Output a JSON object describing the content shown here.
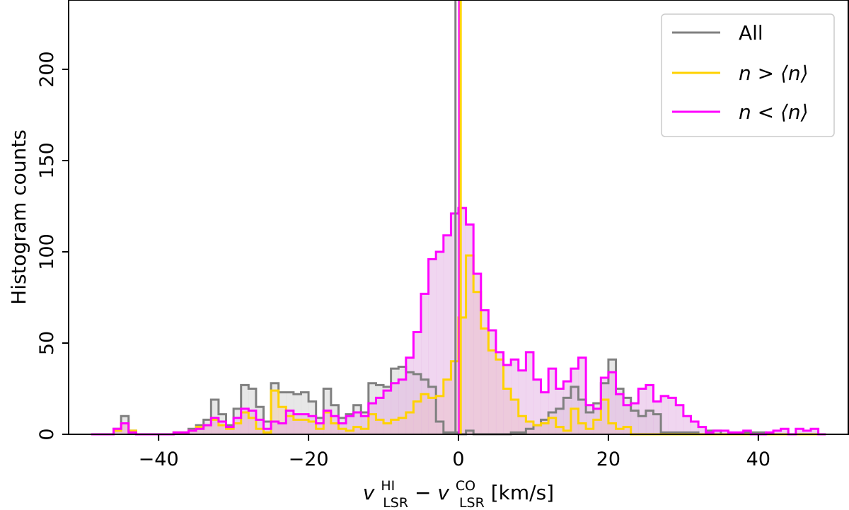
{
  "chart_data": {
    "type": "histogram",
    "bin_width": 1,
    "xlim": [
      -52,
      52
    ],
    "ylim": [
      0,
      238
    ],
    "xticks": [
      -40,
      -20,
      0,
      20,
      40
    ],
    "yticks": [
      0,
      50,
      100,
      150,
      200
    ],
    "ylabel": "Histogram counts",
    "xlabel": {
      "v1": "v",
      "v1_sup": "HI",
      "v1_sub": "LSR",
      "minus": " − ",
      "v2": "v",
      "v2_sup": "CO",
      "v2_sub": "LSR",
      "unit": " [km/s]"
    },
    "legend_position": "top-right",
    "series": [
      {
        "name": "All",
        "color": "#808080",
        "fill": "#d3d3d3",
        "edges": [
          -49,
          -48,
          -47,
          -46,
          -45,
          -44,
          -43,
          -42,
          -41,
          -40,
          -39,
          -38,
          -37,
          -36,
          -35,
          -34,
          -33,
          -32,
          -31,
          -30,
          -29,
          -28,
          -27,
          -26,
          -25,
          -24,
          -23,
          -22,
          -21,
          -20,
          -19,
          -18,
          -17,
          -16,
          -15,
          -14,
          -13,
          -12,
          -11,
          -10,
          -9,
          -8,
          -7,
          -6,
          -5,
          -4,
          -3,
          -2,
          -1,
          0,
          1,
          2,
          3,
          4,
          5,
          6,
          7,
          8,
          9,
          10,
          11,
          12,
          13,
          14,
          15,
          16,
          17,
          18,
          19,
          20,
          21,
          22,
          23,
          24,
          25,
          26,
          27,
          28,
          29,
          30,
          31,
          32,
          33,
          34,
          35,
          36,
          37,
          38,
          39,
          40,
          41,
          42,
          43,
          44,
          45,
          46,
          47,
          48,
          49
        ],
        "counts": [
          0,
          0,
          0,
          3,
          10,
          2,
          0,
          0,
          0,
          0,
          0,
          1,
          1,
          3,
          5,
          8,
          19,
          11,
          5,
          14,
          27,
          25,
          15,
          7,
          28,
          23,
          23,
          22,
          23,
          18,
          9,
          25,
          16,
          9,
          11,
          16,
          12,
          28,
          27,
          26,
          36,
          37,
          34,
          33,
          30,
          26,
          7,
          1,
          1,
          0,
          2,
          0,
          0,
          0,
          0,
          0,
          1,
          1,
          3,
          5,
          8,
          12,
          14,
          20,
          26,
          19,
          12,
          17,
          28,
          41,
          25,
          20,
          13,
          10,
          13,
          11,
          1,
          1,
          1,
          1,
          1,
          0,
          2,
          2,
          0,
          0,
          0,
          1,
          1,
          1,
          0,
          0,
          0,
          0,
          0,
          0,
          0,
          0
        ]
      },
      {
        "name": "n > ⟨n⟩",
        "color": "#ffd200",
        "fill": "#f2cfae",
        "edges": [
          -49,
          -48,
          -47,
          -46,
          -45,
          -44,
          -43,
          -42,
          -41,
          -40,
          -39,
          -38,
          -37,
          -36,
          -35,
          -34,
          -33,
          -32,
          -31,
          -30,
          -29,
          -28,
          -27,
          -26,
          -25,
          -24,
          -23,
          -22,
          -21,
          -20,
          -19,
          -18,
          -17,
          -16,
          -15,
          -14,
          -13,
          -12,
          -11,
          -10,
          -9,
          -8,
          -7,
          -6,
          -5,
          -4,
          -3,
          -2,
          -1,
          0,
          1,
          2,
          3,
          4,
          5,
          6,
          7,
          8,
          9,
          10,
          11,
          12,
          13,
          14,
          15,
          16,
          17,
          18,
          19,
          20,
          21,
          22,
          23,
          24,
          25,
          26,
          27,
          28,
          29,
          30,
          31,
          32,
          33,
          34,
          35,
          36,
          37,
          38,
          39,
          40,
          41,
          42,
          43,
          44,
          45,
          46,
          47,
          48,
          49
        ],
        "counts": [
          0,
          0,
          0,
          2,
          6,
          2,
          0,
          0,
          0,
          0,
          0,
          1,
          1,
          2,
          4,
          5,
          8,
          5,
          3,
          6,
          12,
          9,
          3,
          1,
          24,
          15,
          10,
          8,
          8,
          7,
          3,
          12,
          6,
          3,
          2,
          4,
          3,
          11,
          8,
          6,
          8,
          9,
          12,
          18,
          22,
          20,
          21,
          30,
          40,
          64,
          98,
          78,
          58,
          46,
          41,
          25,
          19,
          10,
          7,
          5,
          6,
          9,
          4,
          2,
          14,
          6,
          3,
          8,
          19,
          6,
          3,
          4,
          0,
          0,
          0,
          0,
          0,
          0,
          0,
          0,
          0,
          0,
          0,
          0,
          0,
          0,
          0,
          0,
          0,
          0,
          0,
          0,
          0,
          0,
          0,
          0,
          0,
          0
        ]
      },
      {
        "name": "n < ⟨n⟩",
        "color": "#ff00ff",
        "fill": "#e4b5e4",
        "edges": [
          -49,
          -48,
          -47,
          -46,
          -45,
          -44,
          -43,
          -42,
          -41,
          -40,
          -39,
          -38,
          -37,
          -36,
          -35,
          -34,
          -33,
          -32,
          -31,
          -30,
          -29,
          -28,
          -27,
          -26,
          -25,
          -24,
          -23,
          -22,
          -21,
          -20,
          -19,
          -18,
          -17,
          -16,
          -15,
          -14,
          -13,
          -12,
          -11,
          -10,
          -9,
          -8,
          -7,
          -6,
          -5,
          -4,
          -3,
          -2,
          -1,
          0,
          1,
          2,
          3,
          4,
          5,
          6,
          7,
          8,
          9,
          10,
          11,
          12,
          13,
          14,
          15,
          16,
          17,
          18,
          19,
          20,
          21,
          22,
          23,
          24,
          25,
          26,
          27,
          28,
          29,
          30,
          31,
          32,
          33,
          34,
          35,
          36,
          37,
          38,
          39,
          40,
          41,
          42,
          43,
          44,
          45,
          46,
          47,
          48,
          49
        ],
        "counts": [
          0,
          0,
          0,
          3,
          6,
          1,
          0,
          0,
          0,
          0,
          0,
          1,
          1,
          2,
          3,
          5,
          9,
          7,
          4,
          9,
          14,
          13,
          8,
          3,
          7,
          6,
          13,
          11,
          11,
          10,
          6,
          13,
          10,
          6,
          10,
          12,
          10,
          17,
          20,
          24,
          28,
          30,
          42,
          56,
          77,
          96,
          100,
          109,
          121,
          124,
          115,
          88,
          68,
          57,
          45,
          38,
          41,
          35,
          45,
          30,
          23,
          36,
          25,
          29,
          36,
          42,
          16,
          14,
          31,
          34,
          22,
          16,
          17,
          25,
          27,
          18,
          21,
          20,
          16,
          10,
          7,
          4,
          1,
          2,
          2,
          1,
          1,
          2,
          0,
          0,
          1,
          2,
          3,
          0,
          3,
          2,
          3,
          0
        ]
      }
    ],
    "vlines": [
      {
        "x": -0.4,
        "color": "#808080"
      },
      {
        "x": 0.1,
        "color": "#ff00ff"
      },
      {
        "x": 0.3,
        "color": "#ffd200"
      }
    ]
  }
}
